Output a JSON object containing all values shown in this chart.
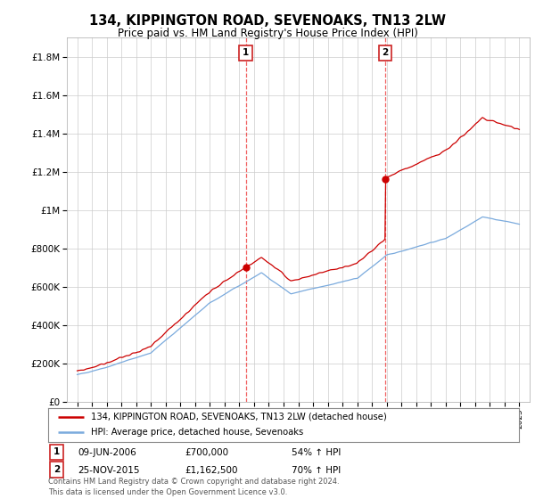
{
  "title": "134, KIPPINGTON ROAD, SEVENOAKS, TN13 2LW",
  "subtitle": "Price paid vs. HM Land Registry's House Price Index (HPI)",
  "ylim": [
    0,
    1900000
  ],
  "yticks": [
    0,
    200000,
    400000,
    600000,
    800000,
    1000000,
    1200000,
    1400000,
    1600000,
    1800000
  ],
  "ytick_labels": [
    "£0",
    "£200K",
    "£400K",
    "£600K",
    "£800K",
    "£1M",
    "£1.2M",
    "£1.4M",
    "£1.6M",
    "£1.8M"
  ],
  "hpi_color": "#7aaadd",
  "price_color": "#cc0000",
  "sale1_year": 2006.44,
  "sale1_price": 700000,
  "sale2_year": 2015.9,
  "sale2_price": 1162500,
  "legend_line1": "134, KIPPINGTON ROAD, SEVENOAKS, TN13 2LW (detached house)",
  "legend_line2": "HPI: Average price, detached house, Sevenoaks",
  "ann1_date": "09-JUN-2006",
  "ann1_price": "£700,000",
  "ann1_hpi": "54% ↑ HPI",
  "ann2_date": "25-NOV-2015",
  "ann2_price": "£1,162,500",
  "ann2_hpi": "70% ↑ HPI",
  "footer": "Contains HM Land Registry data © Crown copyright and database right 2024.\nThis data is licensed under the Open Government Licence v3.0.",
  "background_color": "#ffffff",
  "grid_color": "#cccccc",
  "xmin": 1995,
  "xmax": 2025
}
